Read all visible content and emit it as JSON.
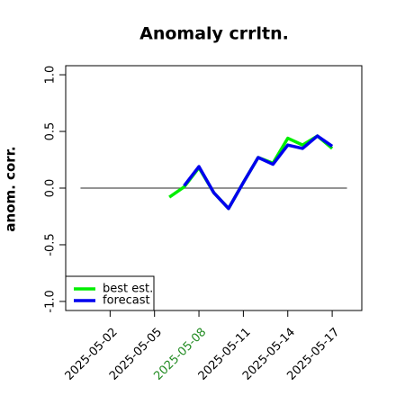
{
  "chart_data": {
    "type": "line",
    "title": "Anomaly crrltn.",
    "y_label": "anom. corr.",
    "x": [
      "2025-05-06",
      "2025-05-07",
      "2025-05-08",
      "2025-05-09",
      "2025-05-10",
      "2025-05-11",
      "2025-05-12",
      "2025-05-13",
      "2025-05-14",
      "2025-05-15",
      "2025-05-16",
      "2025-05-17"
    ],
    "series": [
      {
        "name": "best est.",
        "color": "#00ee00",
        "values": [
          -0.08,
          0.01,
          0.18,
          -0.04,
          -0.18,
          0.05,
          0.27,
          0.22,
          0.44,
          0.38,
          0.46,
          0.35
        ]
      },
      {
        "name": "forecast",
        "color": "#0000ee",
        "values": [
          null,
          0.02,
          0.19,
          -0.04,
          -0.18,
          0.05,
          0.27,
          0.21,
          0.38,
          0.35,
          0.46,
          0.37
        ]
      }
    ],
    "xlim": [
      "2025-04-29",
      "2025-05-19"
    ],
    "xticks": [
      "2025-05-02",
      "2025-05-05",
      "2025-05-08",
      "2025-05-11",
      "2025-05-14",
      "2025-05-17"
    ],
    "xtick_colors": [
      "#000000",
      "#000000",
      "#228b22",
      "#000000",
      "#000000",
      "#000000"
    ],
    "ylim": [
      -1.08,
      1.08
    ],
    "yticks": [
      {
        "value": -1,
        "label": "-1.0"
      },
      {
        "value": -0.5,
        "label": "-0.5"
      },
      {
        "value": 0,
        "label": "0.0"
      },
      {
        "value": 0.5,
        "label": "0.5"
      },
      {
        "value": 1,
        "label": "1.0"
      }
    ],
    "hline": {
      "y": 0,
      "x": [
        "2025-04-30",
        "2025-05-18"
      ],
      "color": "#555555"
    },
    "legend": "bottom-left"
  }
}
